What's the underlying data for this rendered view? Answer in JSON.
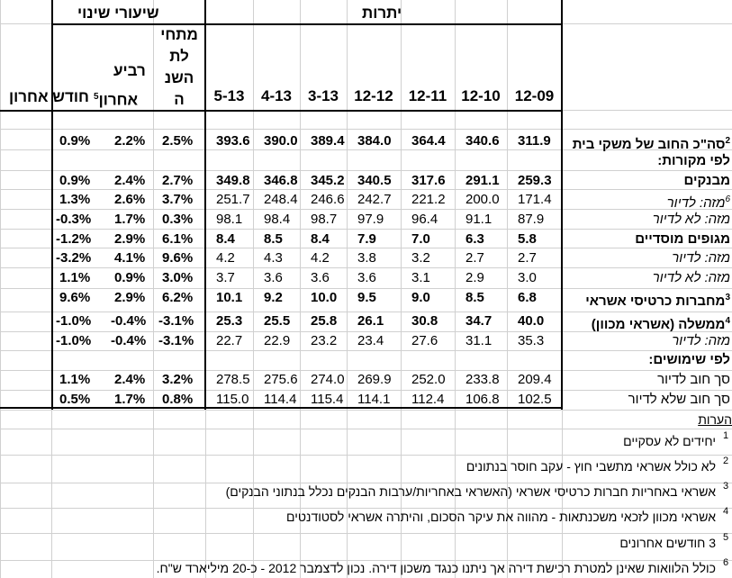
{
  "header": {
    "change_rates": "שיעורי שינוי",
    "balances": "יתרות"
  },
  "periods": [
    "12-09",
    "12-10",
    "12-11",
    "12-12",
    "3-13",
    "4-13",
    "5-13"
  ],
  "change_cols": {
    "ytd": [
      "מתחי",
      "לת",
      "השנ",
      "ה"
    ],
    "quarter": [
      "רביע",
      "אחרון"
    ],
    "quarter_sup": "5",
    "month": "חודש אחרון"
  },
  "rows": [
    {
      "label": "סה\"כ החוב של משקי בית",
      "sup": "2",
      "bold": true,
      "values": [
        "311.9",
        "340.6",
        "364.4",
        "384.0",
        "389.4",
        "390.0",
        "393.6"
      ],
      "ytd": "2.5%",
      "q": "2.2%",
      "m": "0.9%"
    },
    {
      "label": "לפי מקורות:",
      "bold": true,
      "values": [],
      "ytd": "",
      "q": "",
      "m": ""
    },
    {
      "label": "מבנקים",
      "bold": true,
      "values": [
        "259.3",
        "291.1",
        "317.6",
        "340.5",
        "345.2",
        "346.8",
        "349.8"
      ],
      "ytd": "2.7%",
      "q": "2.4%",
      "m": "0.9%"
    },
    {
      "label": "מזה: לדיור",
      "sup": "6",
      "italic": true,
      "values": [
        "171.4",
        "200.0",
        "221.2",
        "242.7",
        "246.6",
        "248.4",
        "251.7"
      ],
      "ytd": "3.7%",
      "q": "2.6%",
      "m": "1.3%"
    },
    {
      "label": "מזה: לא לדיור",
      "italic": true,
      "values": [
        "87.9",
        "91.1",
        "96.4",
        "97.9",
        "98.7",
        "98.4",
        "98.1"
      ],
      "ytd": "0.3%",
      "q": "1.7%",
      "m": "-0.3%"
    },
    {
      "label": "מגופים מוסדיים",
      "bold": true,
      "values": [
        "5.8",
        "6.3",
        "7.0",
        "7.9",
        "8.4",
        "8.5",
        "8.4"
      ],
      "ytd": "6.1%",
      "q": "2.9%",
      "m": "-1.2%"
    },
    {
      "label": "מזה: לדיור",
      "italic": true,
      "values": [
        "2.7",
        "2.7",
        "3.2",
        "3.8",
        "4.2",
        "4.3",
        "4.2"
      ],
      "ytd": "9.6%",
      "q": "4.1%",
      "m": "-3.2%"
    },
    {
      "label": "מזה: לא לדיור",
      "italic": true,
      "values": [
        "3.0",
        "2.9",
        "3.1",
        "3.6",
        "3.6",
        "3.6",
        "3.7"
      ],
      "ytd": "3.0%",
      "q": "0.9%",
      "m": "1.1%"
    },
    {
      "label": "מחברות כרטיסי אשראי",
      "sup": "3",
      "bold": true,
      "values": [
        "6.8",
        "8.5",
        "9.0",
        "9.5",
        "10.0",
        "9.2",
        "10.1"
      ],
      "ytd": "6.2%",
      "q": "2.9%",
      "m": "9.6%"
    },
    {
      "label": "ממשלה (אשראי מכוון)",
      "sup": "4",
      "bold": true,
      "values": [
        "40.0",
        "34.7",
        "30.8",
        "26.1",
        "25.8",
        "25.5",
        "25.3"
      ],
      "ytd": "-3.1%",
      "q": "-0.4%",
      "m": "-1.0%"
    },
    {
      "label": "מזה: לדיור",
      "italic": true,
      "values": [
        "35.3",
        "31.1",
        "27.6",
        "23.4",
        "23.2",
        "22.9",
        "22.7"
      ],
      "ytd": "-3.1%",
      "q": "-0.4%",
      "m": "-1.0%"
    },
    {
      "label": "לפי שימושים:",
      "bold": true,
      "values": [],
      "ytd": "",
      "q": "",
      "m": ""
    },
    {
      "label": "סך חוב לדיור",
      "values": [
        "209.4",
        "233.8",
        "252.0",
        "269.9",
        "274.0",
        "275.6",
        "278.5"
      ],
      "ytd": "3.2%",
      "q": "2.4%",
      "m": "1.1%"
    },
    {
      "label": "סך חוב שלא לדיור",
      "values": [
        "102.5",
        "106.8",
        "112.4",
        "114.1",
        "115.4",
        "114.4",
        "115.0"
      ],
      "ytd": "0.8%",
      "q": "1.7%",
      "m": "0.5%"
    }
  ],
  "notes": {
    "title": "הערות",
    "items": [
      {
        "n": "1",
        "text": "יחידים לא עסקיים"
      },
      {
        "n": "2",
        "text": "לא כולל אשראי מתשבי חוץ - עקב חוסר בנתונים"
      },
      {
        "n": "3",
        "text": "אשראי באחריות חברות כרטיסי אשראי (האשראי באחריות/ערבות הבנקים נכלל בנתוני הבנקים)"
      },
      {
        "n": "4",
        "text": "אשראי מכוון לזכאי משכנתאות - מהווה את עיקר הסכום, והיתרה אשראי לסטודנטים"
      },
      {
        "n": "5",
        "text": "3 חודשים אחרונים"
      },
      {
        "n": "6",
        "text": "כולל הלוואות שאינן למטרת רכישת דירה אך ניתנו כנגד משכון דירה. נכון לדצמבר 2012 - כ-20 מיליארד ש\"ח."
      }
    ]
  }
}
